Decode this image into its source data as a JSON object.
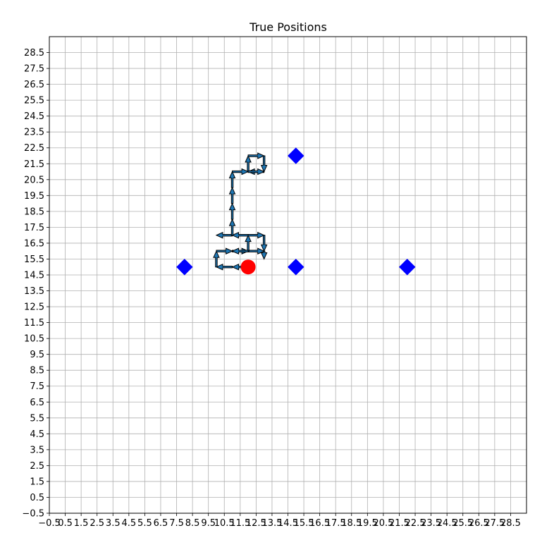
{
  "chart_data": {
    "type": "scatter",
    "title": "True Positions",
    "xlabel": "",
    "ylabel": "",
    "xlim": [
      -0.5,
      29.5
    ],
    "ylim": [
      -0.5,
      29.5
    ],
    "grid": true,
    "x_ticks": [
      "−0.5",
      "0.5",
      "1.5",
      "2.5",
      "3.5",
      "4.5",
      "5.5",
      "6.5",
      "7.5",
      "8.5",
      "9.5",
      "10.5",
      "11.5",
      "12.5",
      "13.5",
      "14.5",
      "15.5",
      "16.5",
      "17.5",
      "18.5",
      "19.5",
      "20.5",
      "21.5",
      "22.5",
      "23.5",
      "24.5",
      "25.5",
      "26.5",
      "27.5",
      "28.5"
    ],
    "y_ticks": [
      "−0.5",
      "0.5",
      "1.5",
      "2.5",
      "3.5",
      "4.5",
      "5.5",
      "6.5",
      "7.5",
      "8.5",
      "9.5",
      "10.5",
      "11.5",
      "12.5",
      "13.5",
      "14.5",
      "15.5",
      "16.5",
      "17.5",
      "18.5",
      "19.5",
      "20.5",
      "21.5",
      "22.5",
      "23.5",
      "24.5",
      "25.5",
      "26.5",
      "27.5",
      "28.5"
    ],
    "tick_values": [
      -0.5,
      0.5,
      1.5,
      2.5,
      3.5,
      4.5,
      5.5,
      6.5,
      7.5,
      8.5,
      9.5,
      10.5,
      11.5,
      12.5,
      13.5,
      14.5,
      15.5,
      16.5,
      17.5,
      18.5,
      19.5,
      20.5,
      21.5,
      22.5,
      23.5,
      24.5,
      25.5,
      26.5,
      27.5,
      28.5
    ],
    "agent": {
      "x": 12,
      "y": 15,
      "color": "#ff0000",
      "marker": "circle"
    },
    "landmarks": [
      {
        "x": 8,
        "y": 15
      },
      {
        "x": 15,
        "y": 15
      },
      {
        "x": 22,
        "y": 15
      },
      {
        "x": 15,
        "y": 22
      }
    ],
    "landmark_color": "#0000ff",
    "arrow_color": "#1f77b4",
    "arrows": [
      {
        "x": 12,
        "y": 15,
        "dx": -1,
        "dy": 0
      },
      {
        "x": 11,
        "y": 15,
        "dx": -1,
        "dy": 0
      },
      {
        "x": 10,
        "y": 15,
        "dx": 0,
        "dy": 1
      },
      {
        "x": 10,
        "y": 16,
        "dx": 1,
        "dy": 0
      },
      {
        "x": 11,
        "y": 16,
        "dx": 1,
        "dy": 0
      },
      {
        "x": 12,
        "y": 16,
        "dx": 1,
        "dy": 0
      },
      {
        "x": 13,
        "y": 16,
        "dx": 0,
        "dy": -0.5
      },
      {
        "x": 12,
        "y": 16,
        "dx": 0,
        "dy": 1
      },
      {
        "x": 12,
        "y": 17,
        "dx": -1,
        "dy": 0
      },
      {
        "x": 11,
        "y": 17,
        "dx": -1,
        "dy": 0
      },
      {
        "x": 12,
        "y": 17,
        "dx": 1,
        "dy": 0
      },
      {
        "x": 13,
        "y": 17,
        "dx": 0,
        "dy": -1
      },
      {
        "x": 12,
        "y": 16,
        "dx": -1,
        "dy": 0
      },
      {
        "x": 11,
        "y": 17,
        "dx": 0,
        "dy": 1
      },
      {
        "x": 11,
        "y": 18,
        "dx": 0,
        "dy": 1
      },
      {
        "x": 11,
        "y": 19,
        "dx": 0,
        "dy": 1
      },
      {
        "x": 11,
        "y": 20,
        "dx": 0,
        "dy": 1
      },
      {
        "x": 11,
        "y": 21,
        "dx": 1,
        "dy": 0
      },
      {
        "x": 12,
        "y": 21,
        "dx": 0,
        "dy": 1
      },
      {
        "x": 12,
        "y": 22,
        "dx": 1,
        "dy": 0
      },
      {
        "x": 13,
        "y": 22,
        "dx": 0,
        "dy": -1
      },
      {
        "x": 13,
        "y": 21,
        "dx": -1,
        "dy": 0
      },
      {
        "x": 12,
        "y": 21,
        "dx": 1,
        "dy": 0
      }
    ]
  }
}
